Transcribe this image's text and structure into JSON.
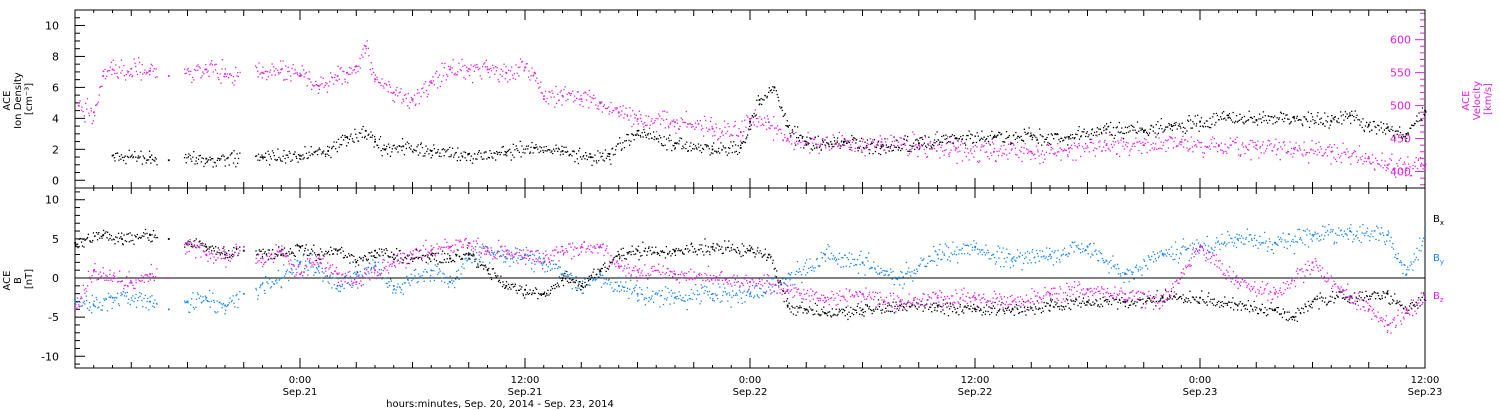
{
  "colors": {
    "density": "#000000",
    "velocity": "#e020e0",
    "bx": "#000000",
    "by": "#1a86e8",
    "bz": "#e020e0",
    "axis": "#000000"
  },
  "x_axis": {
    "caption": "hours:minutes, Sep. 20, 2014 - Sep. 23, 2014",
    "range": [
      -12,
      60
    ],
    "ticks": [
      {
        "t": 0,
        "time": "0:00",
        "date": "Sep.21"
      },
      {
        "t": 12,
        "time": "12:00",
        "date": "Sep.21"
      },
      {
        "t": 24,
        "time": "0:00",
        "date": "Sep.22"
      },
      {
        "t": 36,
        "time": "12:00",
        "date": "Sep.22"
      },
      {
        "t": 48,
        "time": "0:00",
        "date": "Sep.23"
      },
      {
        "t": 60,
        "time": "12:00",
        "date": "Sep.23"
      }
    ]
  },
  "top_panel": {
    "left_label_lines": [
      "ACE",
      "Ion Density",
      "[cm⁻³]"
    ],
    "right_label_lines": [
      "ACE",
      "Velocity",
      "[km/s]"
    ],
    "left_ylim": [
      -0.5,
      11
    ],
    "left_ticks": [
      "0",
      "2",
      "4",
      "6",
      "8",
      "10"
    ],
    "right_ylim": [
      375,
      645
    ],
    "right_ticks": [
      "400",
      "450",
      "500",
      "550",
      "600"
    ]
  },
  "bottom_panel": {
    "label_lines": [
      "ACE",
      "B",
      "[nT]"
    ],
    "ylim": [
      -11.5,
      11.5
    ],
    "ticks": [
      "-10",
      "-5",
      "0",
      "5",
      "10"
    ],
    "legend": [
      {
        "key": "bx",
        "base": "B",
        "sub": "x"
      },
      {
        "key": "by",
        "base": "B",
        "sub": "y"
      },
      {
        "key": "bz",
        "base": "B",
        "sub": "z"
      }
    ]
  },
  "chart_data": [
    {
      "type": "scatter",
      "xlabel": "hours:minutes, Sep. 20, 2014 - Sep. 23, 2014",
      "ylabel": "ACE Ion Density [cm⁻³]",
      "y2label": "ACE Velocity [km/s]",
      "ylim": [
        -0.5,
        11
      ],
      "y2lim": [
        375,
        645
      ],
      "series": [
        {
          "name": "Ion Density",
          "axis": "left",
          "color": "#000000",
          "x": [
            -10.0,
            -8.0,
            -7.0,
            -5.0,
            -2.0,
            0.0,
            1.5,
            2.5,
            3.5,
            4.0,
            4.5,
            5.5,
            7.0,
            9.0,
            11.0,
            12.5,
            14.0,
            15.5,
            16.5,
            18.0,
            20.0,
            22.0,
            23.5,
            24.0,
            24.5,
            25.3,
            26.0,
            27.0,
            29.0,
            31.0,
            33.0,
            35.0,
            37.0,
            39.0,
            41.0,
            43.0,
            45.0,
            46.5,
            48.0,
            49.5,
            51.0,
            53.0,
            55.0,
            56.0,
            57.0,
            58.0,
            59.0,
            60.0
          ],
          "y": [
            1.6,
            1.5,
            1.3,
            1.4,
            1.5,
            1.6,
            1.9,
            2.8,
            3.2,
            2.5,
            2.0,
            2.2,
            1.9,
            1.7,
            1.8,
            2.1,
            1.9,
            1.5,
            1.7,
            3.2,
            2.4,
            2.0,
            2.1,
            3.8,
            5.2,
            6.0,
            3.5,
            2.3,
            2.5,
            2.2,
            2.4,
            2.7,
            2.8,
            2.9,
            2.8,
            3.3,
            3.2,
            3.5,
            3.8,
            4.2,
            3.9,
            4.1,
            3.8,
            4.2,
            3.6,
            3.4,
            3.0,
            4.5
          ]
        },
        {
          "name": "Velocity",
          "axis": "right",
          "color": "#e020e0",
          "x": [
            -11.8,
            -11.0,
            -10.5,
            -10.0,
            -9.0,
            -8.0,
            -7.0,
            -5.0,
            -4.0,
            -2.0,
            -1.0,
            0.0,
            1.0,
            2.0,
            2.5,
            3.0,
            3.5,
            4.0,
            5.0,
            6.0,
            7.0,
            8.0,
            9.0,
            10.0,
            11.0,
            12.0,
            12.5,
            13.0,
            14.0,
            15.0,
            16.0,
            17.0,
            18.0,
            20.0,
            22.0,
            23.5,
            24.0,
            25.0,
            26.0,
            27.0,
            29.0,
            31.0,
            33.0,
            35.0,
            37.0,
            39.0,
            41.0,
            43.0,
            45.0,
            47.0,
            49.0,
            51.0,
            53.0,
            55.0,
            57.0,
            58.0,
            59.0,
            60.0
          ],
          "y": [
            500,
            490,
            545,
            555,
            556,
            553,
            545,
            555,
            548,
            550,
            555,
            545,
            530,
            545,
            550,
            560,
            590,
            540,
            520,
            510,
            535,
            555,
            556,
            555,
            550,
            558,
            550,
            510,
            515,
            510,
            505,
            490,
            480,
            475,
            465,
            460,
            480,
            475,
            450,
            445,
            440,
            445,
            440,
            435,
            430,
            430,
            435,
            440,
            440,
            445,
            440,
            440,
            435,
            430,
            420,
            410,
            405,
            410
          ]
        }
      ]
    },
    {
      "type": "scatter",
      "xlabel": "hours:minutes, Sep. 20, 2014 - Sep. 23, 2014",
      "ylabel": "ACE B [nT]",
      "ylim": [
        -11.5,
        11.5
      ],
      "series": [
        {
          "name": "Bx",
          "color": "#000000",
          "x": [
            -12.0,
            -10.5,
            -9.5,
            -8.0,
            -7.0,
            -5.0,
            -4.0,
            -3.0,
            -1.0,
            0.0,
            1.0,
            2.0,
            3.0,
            4.0,
            5.0,
            6.0,
            7.0,
            8.0,
            9.0,
            10.0,
            11.0,
            12.0,
            13.0,
            14.0,
            15.0,
            16.0,
            17.0,
            18.0,
            20.0,
            22.0,
            24.0,
            25.0,
            26.0,
            27.0,
            28.0,
            30.0,
            32.0,
            34.0,
            36.0,
            38.0,
            40.0,
            42.0,
            44.0,
            46.0,
            48.0,
            50.0,
            52.0,
            53.0,
            54.0,
            56.0,
            58.0,
            59.0,
            60.0
          ],
          "y": [
            4.5,
            5.5,
            5.0,
            5.5,
            5.0,
            4.0,
            3.0,
            3.5,
            3.0,
            4.0,
            3.0,
            3.5,
            2.0,
            3.5,
            3.0,
            2.5,
            3.0,
            2.5,
            3.0,
            1.0,
            -1.0,
            -1.5,
            -2.0,
            0.0,
            -1.0,
            1.0,
            3.0,
            3.5,
            3.5,
            4.0,
            3.5,
            3.0,
            -3.5,
            -4.0,
            -4.5,
            -4.0,
            -3.5,
            -3.5,
            -4.0,
            -4.0,
            -3.5,
            -3.0,
            -3.0,
            -2.5,
            -2.5,
            -3.5,
            -4.0,
            -5.0,
            -3.0,
            -2.5,
            -2.0,
            -4.0,
            -2.5
          ]
        },
        {
          "name": "By",
          "color": "#1a86e8",
          "x": [
            -12.0,
            -11.0,
            -10.0,
            -8.0,
            -7.0,
            -6.0,
            -5.0,
            -4.0,
            -3.0,
            -1.0,
            0.0,
            1.0,
            2.0,
            3.0,
            4.0,
            5.0,
            6.0,
            7.0,
            8.0,
            9.0,
            10.0,
            11.0,
            12.0,
            13.0,
            14.0,
            15.0,
            16.0,
            17.0,
            18.0,
            20.0,
            22.0,
            24.0,
            26.0,
            28.0,
            30.0,
            32.0,
            34.0,
            36.0,
            38.0,
            40.0,
            42.0,
            44.0,
            46.0,
            48.0,
            50.0,
            52.0,
            54.0,
            56.0,
            58.0,
            59.0,
            60.0
          ],
          "y": [
            -3.0,
            -3.5,
            -2.5,
            -3.0,
            -4.0,
            -3.0,
            -2.5,
            -3.5,
            -2.0,
            0.0,
            2.0,
            1.5,
            -1.0,
            0.5,
            2.0,
            -1.0,
            0.0,
            1.0,
            -0.5,
            2.5,
            3.5,
            2.5,
            3.0,
            2.0,
            0.5,
            -1.0,
            0.5,
            -1.0,
            -2.0,
            -2.5,
            -2.0,
            -2.0,
            0.0,
            3.0,
            2.0,
            0.0,
            3.0,
            4.0,
            2.5,
            3.0,
            4.0,
            0.5,
            3.0,
            4.0,
            5.0,
            4.5,
            5.5,
            6.0,
            5.5,
            0.5,
            6.0
          ]
        },
        {
          "name": "Bz",
          "color": "#e020e0",
          "x": [
            -12.0,
            -11.0,
            -10.0,
            -9.0,
            -8.0,
            -7.0,
            -6.0,
            -5.0,
            -4.0,
            -3.0,
            -2.0,
            -1.0,
            0.0,
            1.0,
            2.0,
            3.0,
            4.0,
            5.0,
            6.0,
            7.0,
            8.0,
            9.0,
            10.0,
            11.0,
            12.0,
            13.0,
            14.0,
            15.0,
            16.0,
            17.0,
            18.0,
            20.0,
            22.0,
            24.0,
            26.0,
            28.0,
            30.0,
            32.0,
            34.0,
            36.0,
            38.0,
            40.0,
            42.0,
            44.0,
            46.0,
            48.0,
            50.0,
            52.0,
            54.0,
            56.0,
            57.0,
            58.0,
            59.0,
            60.0
          ],
          "y": [
            -4.0,
            1.0,
            0.0,
            -0.5,
            0.5,
            0.0,
            4.5,
            3.0,
            2.5,
            4.0,
            2.5,
            3.5,
            0.5,
            2.5,
            0.5,
            -0.5,
            1.0,
            2.0,
            3.0,
            3.5,
            4.0,
            4.5,
            3.5,
            3.5,
            3.0,
            2.5,
            3.5,
            4.0,
            4.0,
            1.5,
            1.0,
            0.5,
            0.0,
            -0.5,
            -1.5,
            -2.5,
            -2.0,
            -3.0,
            -2.5,
            -2.5,
            -3.0,
            -2.0,
            -1.5,
            -2.0,
            -3.0,
            4.0,
            -0.5,
            -2.0,
            2.0,
            -2.5,
            -4.0,
            -6.0,
            -4.0,
            -2.5
          ]
        }
      ]
    }
  ]
}
